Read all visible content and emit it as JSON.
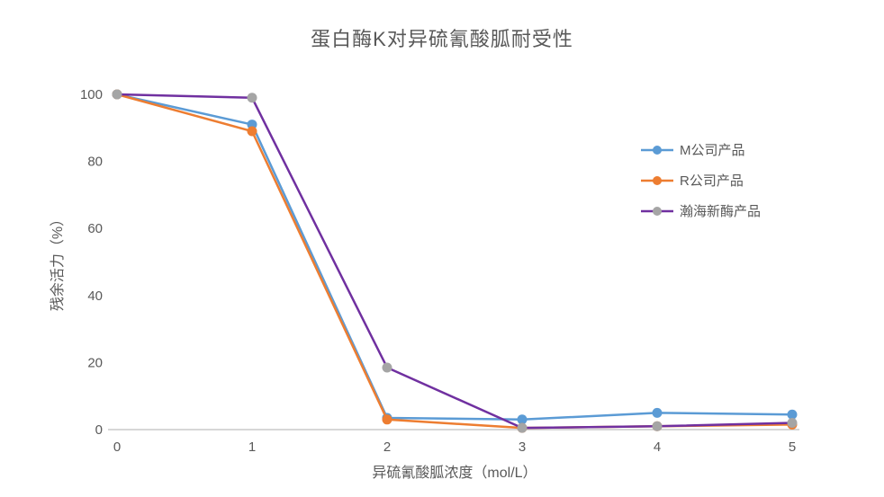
{
  "chart_data": {
    "type": "line",
    "title": "蛋白酶K对异硫氰酸胍耐受性",
    "xlabel": "异硫氰酸胍浓度（mol/L）",
    "ylabel": "残余活力（%）",
    "x": [
      0,
      1,
      2,
      3,
      4,
      5
    ],
    "xticks": [
      0,
      1,
      2,
      3,
      4,
      5
    ],
    "yticks": [
      0,
      20,
      40,
      60,
      80,
      100
    ],
    "xlim": [
      0,
      5
    ],
    "ylim": [
      0,
      100
    ],
    "grid": false,
    "legend_position": "right",
    "axis_line_color": "#BFBFBF",
    "text_color": "#595959",
    "series": [
      {
        "name": "M公司产品",
        "line_color": "#5B9BD5",
        "marker_color": "#5B9BD5",
        "values": [
          100,
          91,
          3.5,
          3,
          5,
          4.5
        ]
      },
      {
        "name": "R公司产品",
        "line_color": "#ED7D31",
        "marker_color": "#ED7D31",
        "values": [
          100,
          89,
          3,
          0.5,
          1,
          1.5
        ]
      },
      {
        "name": "瀚海新酶产品",
        "line_color": "#7030A0",
        "marker_color": "#A5A5A5",
        "values": [
          100,
          99,
          18.5,
          0.5,
          1,
          2
        ]
      }
    ]
  }
}
